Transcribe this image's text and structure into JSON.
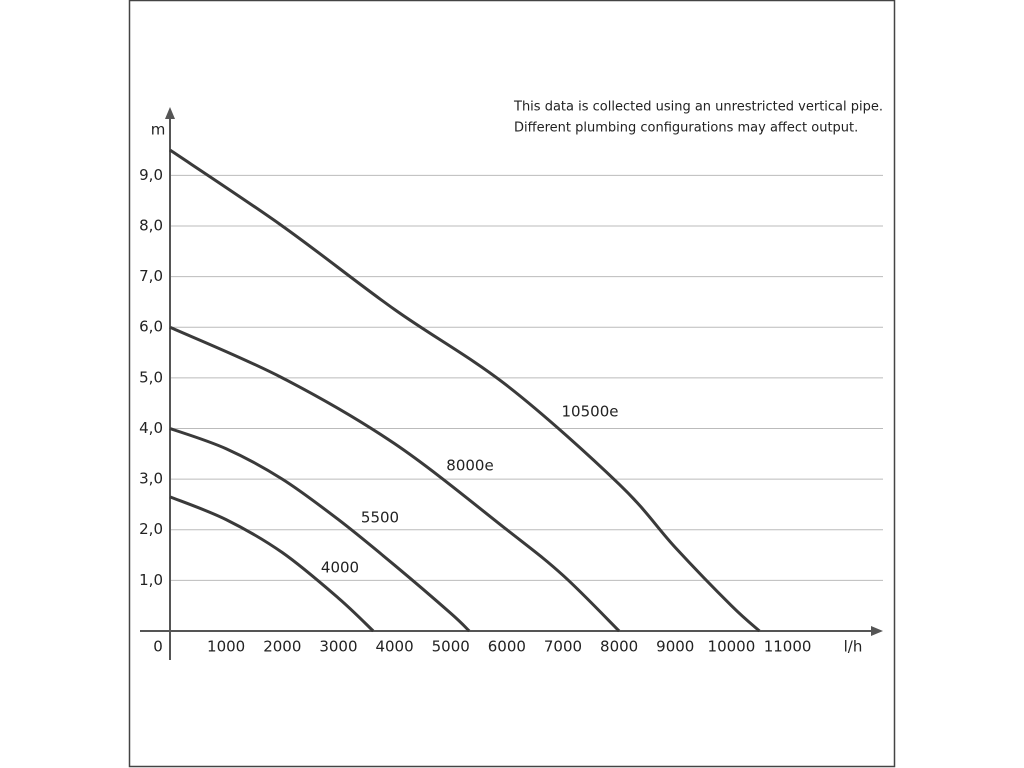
{
  "chart_data": {
    "type": "line",
    "note": [
      "This data is collected using an unrestricted vertical pipe.",
      "Different plumbing configurations may affect output."
    ],
    "x_label": "l/h",
    "y_label": "m",
    "xlim": [
      0,
      12700
    ],
    "ylim": [
      0,
      10.35
    ],
    "xticks": [
      0,
      1000,
      2000,
      3000,
      4000,
      5000,
      6000,
      7000,
      8000,
      9000,
      10000,
      11000
    ],
    "yticks": [
      {
        "value": 1,
        "label": "1,0"
      },
      {
        "value": 2,
        "label": "2,0"
      },
      {
        "value": 3,
        "label": "3,0"
      },
      {
        "value": 4,
        "label": "4,0"
      },
      {
        "value": 5,
        "label": "5,0"
      },
      {
        "value": 6,
        "label": "6,0"
      },
      {
        "value": 7,
        "label": "7,0"
      },
      {
        "value": 8,
        "label": "8,0"
      },
      {
        "value": 9,
        "label": "9,0"
      }
    ],
    "grid": true,
    "series": [
      {
        "name": "10500e",
        "color": "#3a3a3a",
        "x": [
          0,
          2000,
          4000,
          6000,
          8000,
          9000,
          10000,
          10500
        ],
        "values": [
          9.5,
          8.0,
          6.35,
          4.85,
          2.9,
          1.65,
          0.5,
          0
        ]
      },
      {
        "name": "8000e",
        "color": "#3a3a3a",
        "x": [
          0,
          2000,
          4000,
          6000,
          7000,
          8000
        ],
        "values": [
          6.0,
          5.0,
          3.7,
          2.0,
          1.1,
          0
        ]
      },
      {
        "name": "5500",
        "color": "#3a3a3a",
        "x": [
          0,
          1000,
          2000,
          3000,
          4000,
          5000,
          5330
        ],
        "values": [
          4.0,
          3.6,
          3.0,
          2.2,
          1.3,
          0.35,
          0
        ]
      },
      {
        "name": "4000",
        "color": "#3a3a3a",
        "x": [
          0,
          1000,
          2000,
          3000,
          3620
        ],
        "values": [
          2.65,
          2.2,
          1.55,
          0.65,
          0
        ]
      }
    ]
  }
}
